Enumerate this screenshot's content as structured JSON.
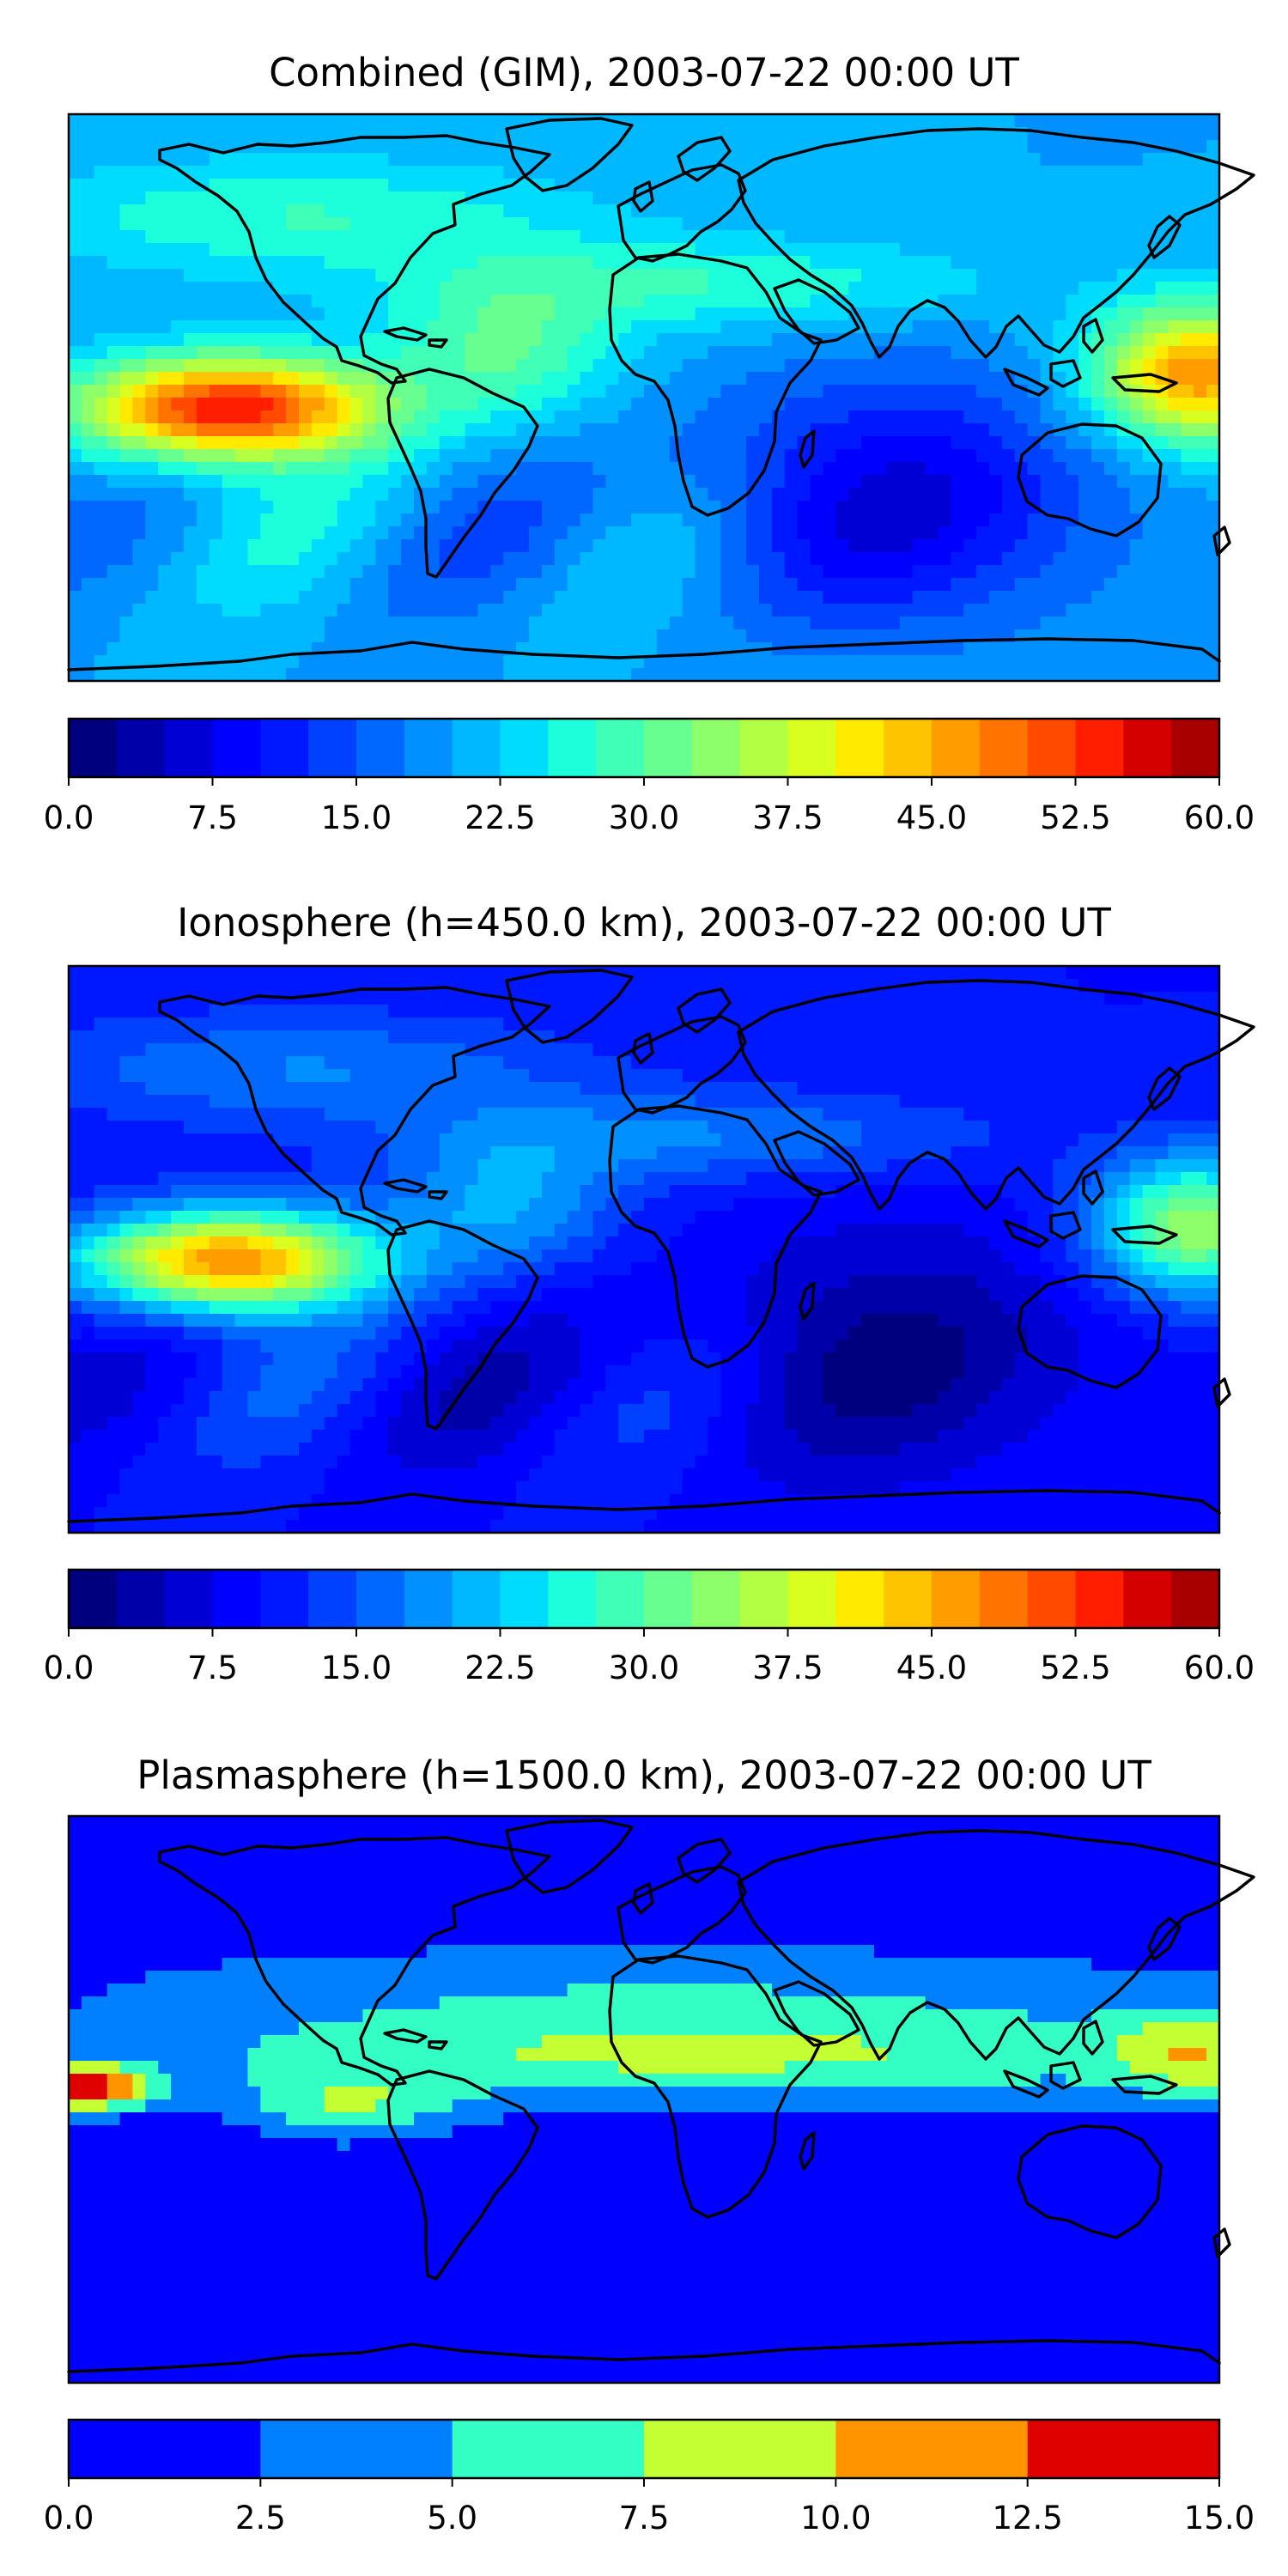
{
  "panels": [
    {
      "title": "Combined (GIM), 2003-07-22 00:00 UT",
      "colorbar": {
        "vmin": 0.0,
        "vmax": 60.0,
        "n_levels": 24,
        "tick_labels": [
          "0.0",
          "7.5",
          "15.0",
          "22.5",
          "30.0",
          "37.5",
          "45.0",
          "52.5",
          "60.0"
        ],
        "colors": [
          "#00007f",
          "#0000a8",
          "#0000d4",
          "#0000ff",
          "#0018ff",
          "#0040ff",
          "#0068ff",
          "#0090ff",
          "#00b8ff",
          "#00dcfe",
          "#1cffda",
          "#40ffb6",
          "#66ff90",
          "#8cff6a",
          "#b3ff43",
          "#d8ff1f",
          "#ffea00",
          "#ffc400",
          "#ff9c00",
          "#ff7300",
          "#ff4a00",
          "#ff1f00",
          "#d40000",
          "#a80000"
        ]
      },
      "field_features": {
        "background_level": 8,
        "pacific_peak_level": 22,
        "west_pacific_peak_level": 19,
        "indian_ocean_min_level": 3
      }
    },
    {
      "title": "Ionosphere  (h=450.0 km), 2003-07-22 00:00 UT",
      "colorbar": {
        "vmin": 0.0,
        "vmax": 60.0,
        "n_levels": 24,
        "tick_labels": [
          "0.0",
          "7.5",
          "15.0",
          "22.5",
          "30.0",
          "37.5",
          "45.0",
          "52.5",
          "60.0"
        ],
        "colors": [
          "#00007f",
          "#0000a8",
          "#0000d4",
          "#0000ff",
          "#0018ff",
          "#0040ff",
          "#0068ff",
          "#0090ff",
          "#00b8ff",
          "#00dcfe",
          "#1cffda",
          "#40ffb6",
          "#66ff90",
          "#8cff6a",
          "#b3ff43",
          "#d8ff1f",
          "#ffea00",
          "#ffc400",
          "#ff9c00",
          "#ff7300",
          "#ff4a00",
          "#ff1f00",
          "#d40000",
          "#a80000"
        ]
      },
      "field_features": {
        "background_level": 4,
        "pacific_peak_level": 19,
        "west_pacific_peak_level": 14,
        "indian_ocean_min_level": 1
      }
    },
    {
      "title": "Plasmasphere (h=1500.0 km), 2003-07-22 00:00 UT",
      "colorbar": {
        "vmin": 0.0,
        "vmax": 15.0,
        "n_levels": 6,
        "tick_labels": [
          "0.0",
          "2.5",
          "5.0",
          "7.5",
          "10.0",
          "12.5",
          "15.0"
        ],
        "colors": [
          "#0000ff",
          "#0080ff",
          "#33ffc4",
          "#c4ff33",
          "#ff9400",
          "#df0000"
        ]
      },
      "field_features": {
        "background_level": 0,
        "pacific_peak_level": 5,
        "west_pacific_peak_level": 4,
        "tropical_band_level": 3
      }
    }
  ],
  "map": {
    "projection": "plate-carree",
    "lon_range": [
      -180,
      180
    ],
    "lat_range": [
      -90,
      90
    ]
  }
}
